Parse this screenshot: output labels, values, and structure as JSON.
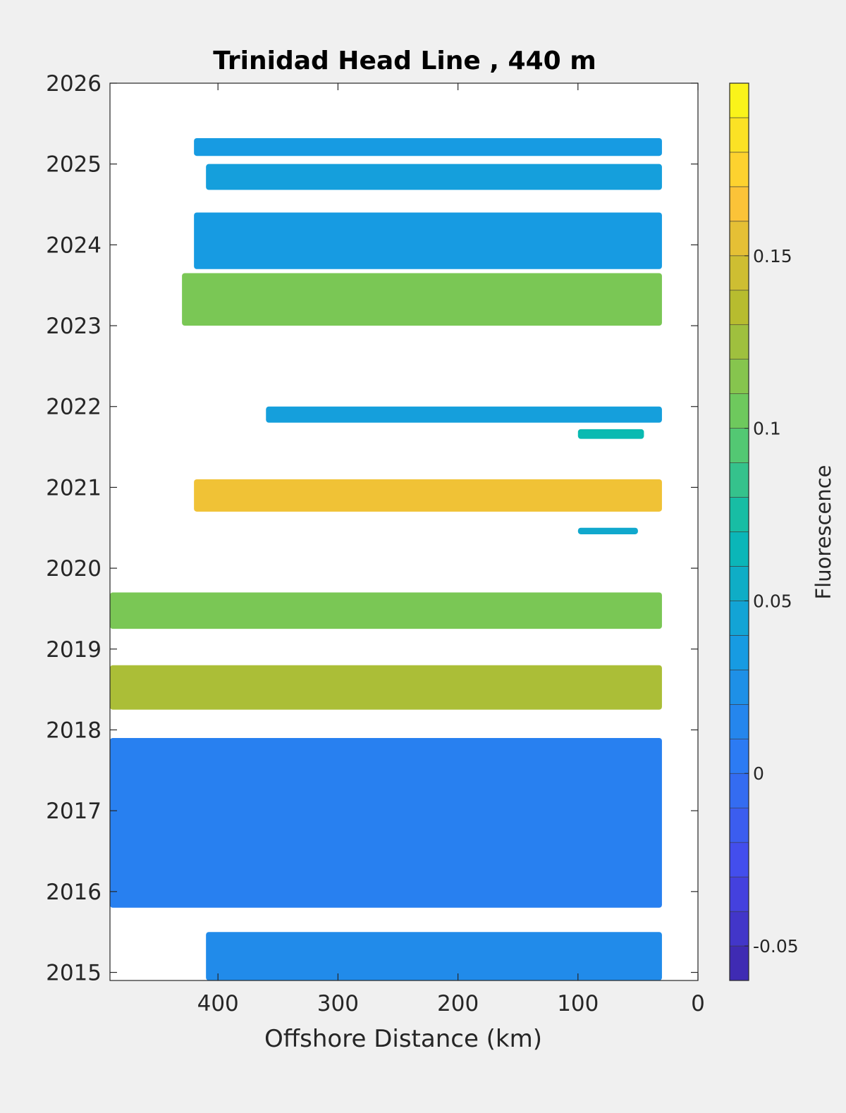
{
  "chart_data": {
    "type": "heatmap",
    "title": "Trinidad Head Line , 440 m",
    "xlabel": "Offshore Distance (km)",
    "ylabel": "",
    "x_reversed": true,
    "xlim": [
      490,
      0
    ],
    "ylim": [
      2014.9,
      2026
    ],
    "x_ticks": [
      400,
      300,
      200,
      100,
      0
    ],
    "y_ticks": [
      2015,
      2016,
      2017,
      2018,
      2019,
      2020,
      2021,
      2022,
      2023,
      2024,
      2025,
      2026
    ],
    "grid": false,
    "colorbar": {
      "label": "Fluorescence",
      "min": -0.06,
      "max": 0.2,
      "step": 0.01,
      "ticks": [
        -0.05,
        0,
        0.05,
        0.1,
        0.15
      ],
      "colormap": "parula"
    },
    "bands": [
      {
        "x_start": 420,
        "x_end": 30,
        "y_start": 2025.1,
        "y_end": 2025.32,
        "value": 0.035
      },
      {
        "x_start": 410,
        "x_end": 30,
        "y_start": 2024.68,
        "y_end": 2025.0,
        "value": 0.04
      },
      {
        "x_start": 420,
        "x_end": 30,
        "y_start": 2023.7,
        "y_end": 2024.4,
        "value": 0.035
      },
      {
        "x_start": 430,
        "x_end": 30,
        "y_start": 2023.0,
        "y_end": 2023.65,
        "value": 0.11
      },
      {
        "x_start": 360,
        "x_end": 30,
        "y_start": 2021.8,
        "y_end": 2022.0,
        "value": 0.04
      },
      {
        "x_start": 100,
        "x_end": 45,
        "y_start": 2021.6,
        "y_end": 2021.72,
        "value": 0.07
      },
      {
        "x_start": 420,
        "x_end": 30,
        "y_start": 2020.7,
        "y_end": 2021.1,
        "value": 0.16
      },
      {
        "x_start": 100,
        "x_end": 50,
        "y_start": 2020.42,
        "y_end": 2020.5,
        "value": 0.05
      },
      {
        "x_start": 490,
        "x_end": 30,
        "y_start": 2019.25,
        "y_end": 2019.7,
        "value": 0.11
      },
      {
        "x_start": 490,
        "x_end": 30,
        "y_start": 2018.25,
        "y_end": 2018.8,
        "value": 0.13
      },
      {
        "x_start": 490,
        "x_end": 30,
        "y_start": 2015.8,
        "y_end": 2017.9,
        "value": 0.01
      },
      {
        "x_start": 410,
        "x_end": 30,
        "y_start": 2014.9,
        "y_end": 2015.5,
        "value": 0.02
      }
    ]
  }
}
